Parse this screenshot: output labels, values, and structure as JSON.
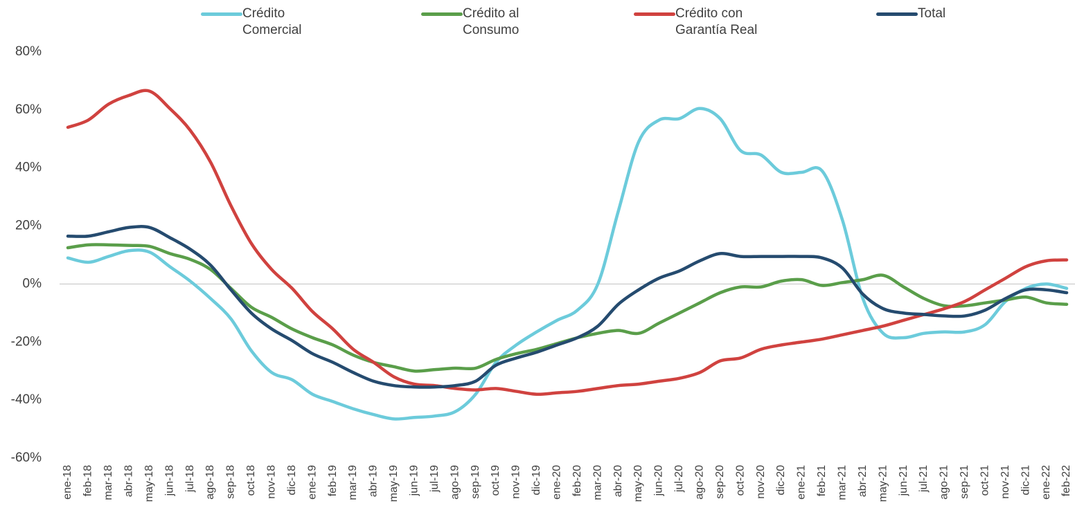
{
  "chart_data": {
    "type": "line",
    "categories": [
      "ene-18",
      "feb-18",
      "mar-18",
      "abr-18",
      "may-18",
      "jun-18",
      "jul-18",
      "ago-18",
      "sep-18",
      "oct-18",
      "nov-18",
      "dic-18",
      "ene-19",
      "feb-19",
      "mar-19",
      "abr-19",
      "may-19",
      "jun-19",
      "jul-19",
      "ago-19",
      "sep-19",
      "oct-19",
      "nov-19",
      "dic-19",
      "ene-20",
      "feb-20",
      "mar-20",
      "abr-20",
      "may-20",
      "jun-20",
      "jul-20",
      "ago-20",
      "sep-20",
      "oct-20",
      "nov-20",
      "dic-20",
      "ene-21",
      "feb-21",
      "mar-21",
      "abr-21",
      "may-21",
      "jun-21",
      "jul-21",
      "ago-21",
      "sep-21",
      "oct-21",
      "nov-21",
      "dic-21",
      "ene-22",
      "feb-22"
    ],
    "series": [
      {
        "name": "Crédito Comercial",
        "color": "#6ccbdb",
        "values": [
          9,
          7.5,
          9.5,
          11.5,
          11,
          6,
          1,
          -5,
          -12,
          -23,
          -30.5,
          -33,
          -38,
          -40.5,
          -43,
          -45,
          -46.5,
          -46,
          -45.5,
          -44,
          -38,
          -27,
          -21,
          -16.5,
          -12.5,
          -9,
          0,
          25,
          49,
          56.5,
          57,
          60.5,
          57,
          46,
          44.5,
          38.5,
          38.5,
          39,
          22,
          -5,
          -17,
          -18.5,
          -17,
          -16.5,
          -16.5,
          -14,
          -6,
          -1.5,
          0,
          -1.5
        ]
      },
      {
        "name": "Crédito al Consumo",
        "color": "#5a9e4a",
        "values": [
          12.5,
          13.5,
          13.5,
          13.3,
          13,
          10.5,
          8.5,
          5,
          -1.5,
          -8,
          -11.5,
          -15.5,
          -18.5,
          -21,
          -24.5,
          -27,
          -28.5,
          -30,
          -29.5,
          -29,
          -29,
          -26,
          -24,
          -22.5,
          -20.5,
          -18.5,
          -17,
          -16,
          -17,
          -13.5,
          -10,
          -6.5,
          -3,
          -1,
          -1,
          1,
          1.5,
          -0.5,
          0.5,
          1.5,
          3,
          -1,
          -5,
          -7.5,
          -7.5,
          -6.5,
          -5.5,
          -4.5,
          -6.5,
          -7
        ]
      },
      {
        "name": "Crédito con Garantía Real",
        "color": "#d0423f",
        "values": [
          54,
          56.5,
          62,
          65,
          66.5,
          60.5,
          53,
          42,
          27,
          14,
          5,
          -1.5,
          -9.5,
          -15.5,
          -22.5,
          -27,
          -32,
          -34.5,
          -35,
          -36,
          -36.5,
          -36,
          -37,
          -38,
          -37.5,
          -37,
          -36,
          -35,
          -34.5,
          -33.5,
          -32.5,
          -30.5,
          -26.5,
          -25.5,
          -22.5,
          -21,
          -20,
          -19,
          -17.5,
          -16,
          -14.5,
          -12.5,
          -10.5,
          -8.5,
          -6,
          -2,
          2,
          6,
          8,
          8.3
        ]
      },
      {
        "name": "Total",
        "color": "#254b6f",
        "values": [
          16.5,
          16.5,
          18,
          19.5,
          19.5,
          16,
          12,
          6.5,
          -2,
          -10,
          -15.5,
          -19.5,
          -24,
          -27,
          -30.5,
          -33.5,
          -35,
          -35.5,
          -35.5,
          -35,
          -33.5,
          -28,
          -25.5,
          -23.5,
          -21,
          -18.5,
          -14.5,
          -7,
          -2,
          2,
          4.5,
          8,
          10.5,
          9.5,
          9.5,
          9.5,
          9.5,
          9,
          5.5,
          -3.5,
          -8.5,
          -10,
          -10.5,
          -11,
          -11,
          -9,
          -5,
          -2,
          -2,
          -3
        ]
      }
    ],
    "ylim": [
      -60,
      80
    ],
    "yticks": [
      {
        "value": -60,
        "label": "-60%"
      },
      {
        "value": -40,
        "label": "-40%"
      },
      {
        "value": -20,
        "label": "-20%"
      },
      {
        "value": 0,
        "label": "0%"
      },
      {
        "value": 20,
        "label": "20%"
      },
      {
        "value": 40,
        "label": "40%"
      },
      {
        "value": 60,
        "label": "60%"
      },
      {
        "value": 80,
        "label": "80%"
      }
    ],
    "grid": false,
    "legend": "top"
  }
}
